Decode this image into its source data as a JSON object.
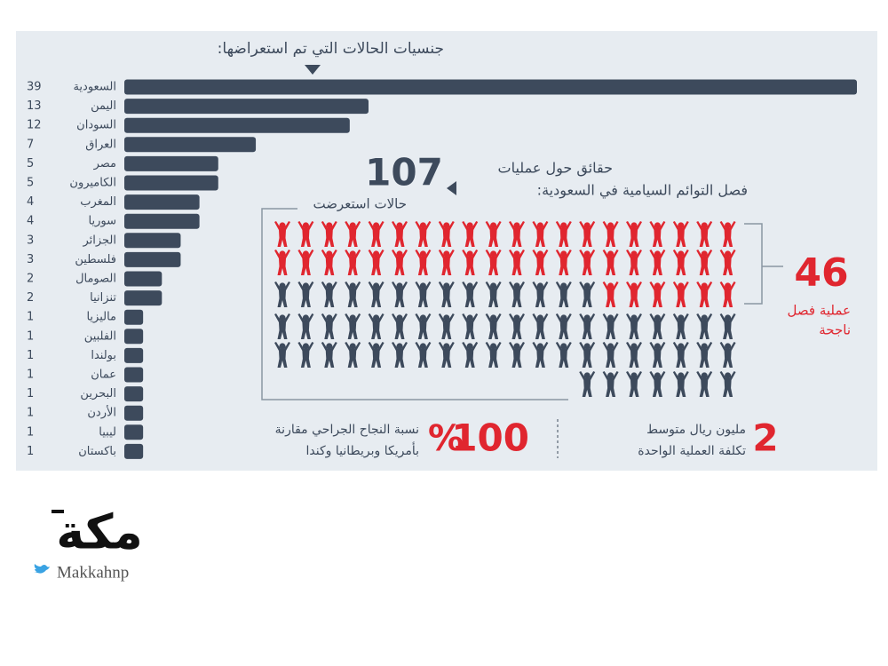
{
  "header": {
    "title": "جنسيات الحالات التي تم استعراضها:"
  },
  "chart_data": {
    "type": "bar",
    "categories": [
      "السعودية",
      "اليمن",
      "السودان",
      "العراق",
      "مصر",
      "الكاميرون",
      "المغرب",
      "سوريا",
      "الجزائر",
      "فلسطين",
      "الصومال",
      "تنزانيا",
      "ماليزيا",
      "الفلبين",
      "بولندا",
      "عمان",
      "البحرين",
      "الأردن",
      "ليبيا",
      "باكستان"
    ],
    "values": [
      39,
      13,
      12,
      7,
      5,
      5,
      4,
      4,
      3,
      3,
      2,
      2,
      1,
      1,
      1,
      1,
      1,
      1,
      1,
      1
    ],
    "color": "#3d4a5c"
  },
  "facts": {
    "heading_1": "حقائق حول عمليات",
    "heading_2": "فصل التوائم السيامية في السعودية:",
    "cases": {
      "value": 107,
      "label": "حالات استعرضت",
      "color": "#3d4a5c"
    },
    "success": {
      "value": 46,
      "label_1": "عملية فصل",
      "label_2": "ناجحة",
      "color": "#e0262f"
    },
    "rate": {
      "value": 100,
      "unit": "%",
      "line_1": "نسبة النجاح الجراحي مقارنة",
      "line_2": "بأمريكا وبريطانيا وكندا"
    },
    "cost": {
      "value": 2,
      "line_1": "مليون ريال متوسط",
      "line_2": "تكلفة العملية الواحدة"
    }
  },
  "logo": {
    "name": "مكة",
    "handle": "Makkahnp"
  }
}
